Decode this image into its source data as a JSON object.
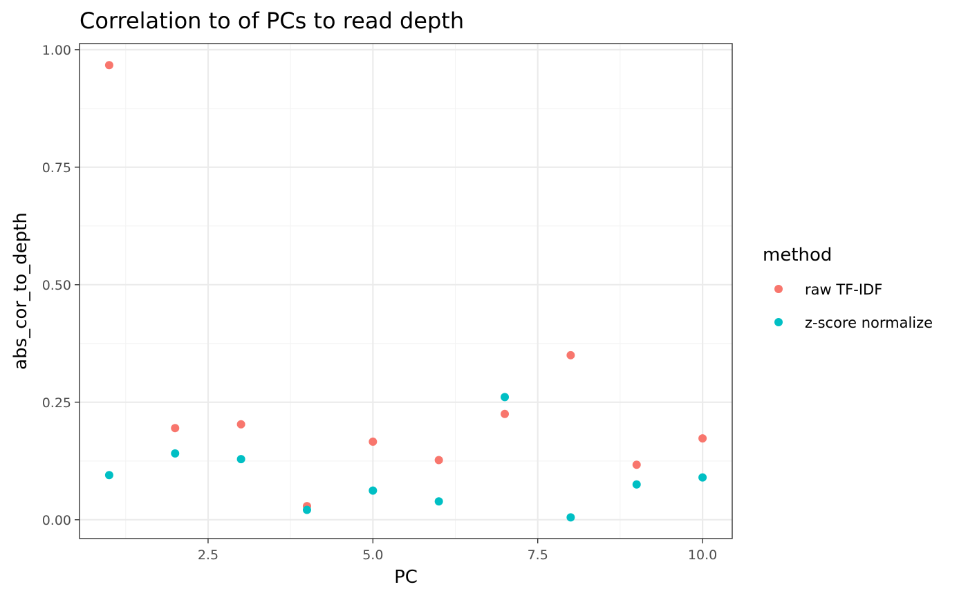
{
  "chart_data": {
    "type": "scatter",
    "title": "Correlation to of PCs to read depth",
    "xlabel": "PC",
    "ylabel": "abs_cor_to_depth",
    "xlim": [
      0.55,
      10.45
    ],
    "ylim": [
      -0.04,
      1.013
    ],
    "x_ticks": [
      2.5,
      5.0,
      7.5,
      10.0
    ],
    "x_tick_labels": [
      "2.5",
      "5.0",
      "7.5",
      "10.0"
    ],
    "y_ticks": [
      0.0,
      0.25,
      0.5,
      0.75,
      1.0
    ],
    "y_tick_labels": [
      "0.00",
      "0.25",
      "0.50",
      "0.75",
      "1.00"
    ],
    "grid": true,
    "legend": {
      "title": "method",
      "placement": "right"
    },
    "series": [
      {
        "name": "raw TF-IDF",
        "color": "#F8766D",
        "x": [
          1,
          2,
          3,
          4,
          5,
          6,
          7,
          8,
          9,
          10
        ],
        "y": [
          0.967,
          0.195,
          0.203,
          0.029,
          0.166,
          0.127,
          0.225,
          0.35,
          0.117,
          0.173
        ]
      },
      {
        "name": "z-score normalize",
        "color": "#00BFC4",
        "x": [
          1,
          2,
          3,
          4,
          5,
          6,
          7,
          8,
          9,
          10
        ],
        "y": [
          0.095,
          0.141,
          0.129,
          0.021,
          0.062,
          0.039,
          0.261,
          0.005,
          0.075,
          0.09
        ]
      }
    ]
  }
}
